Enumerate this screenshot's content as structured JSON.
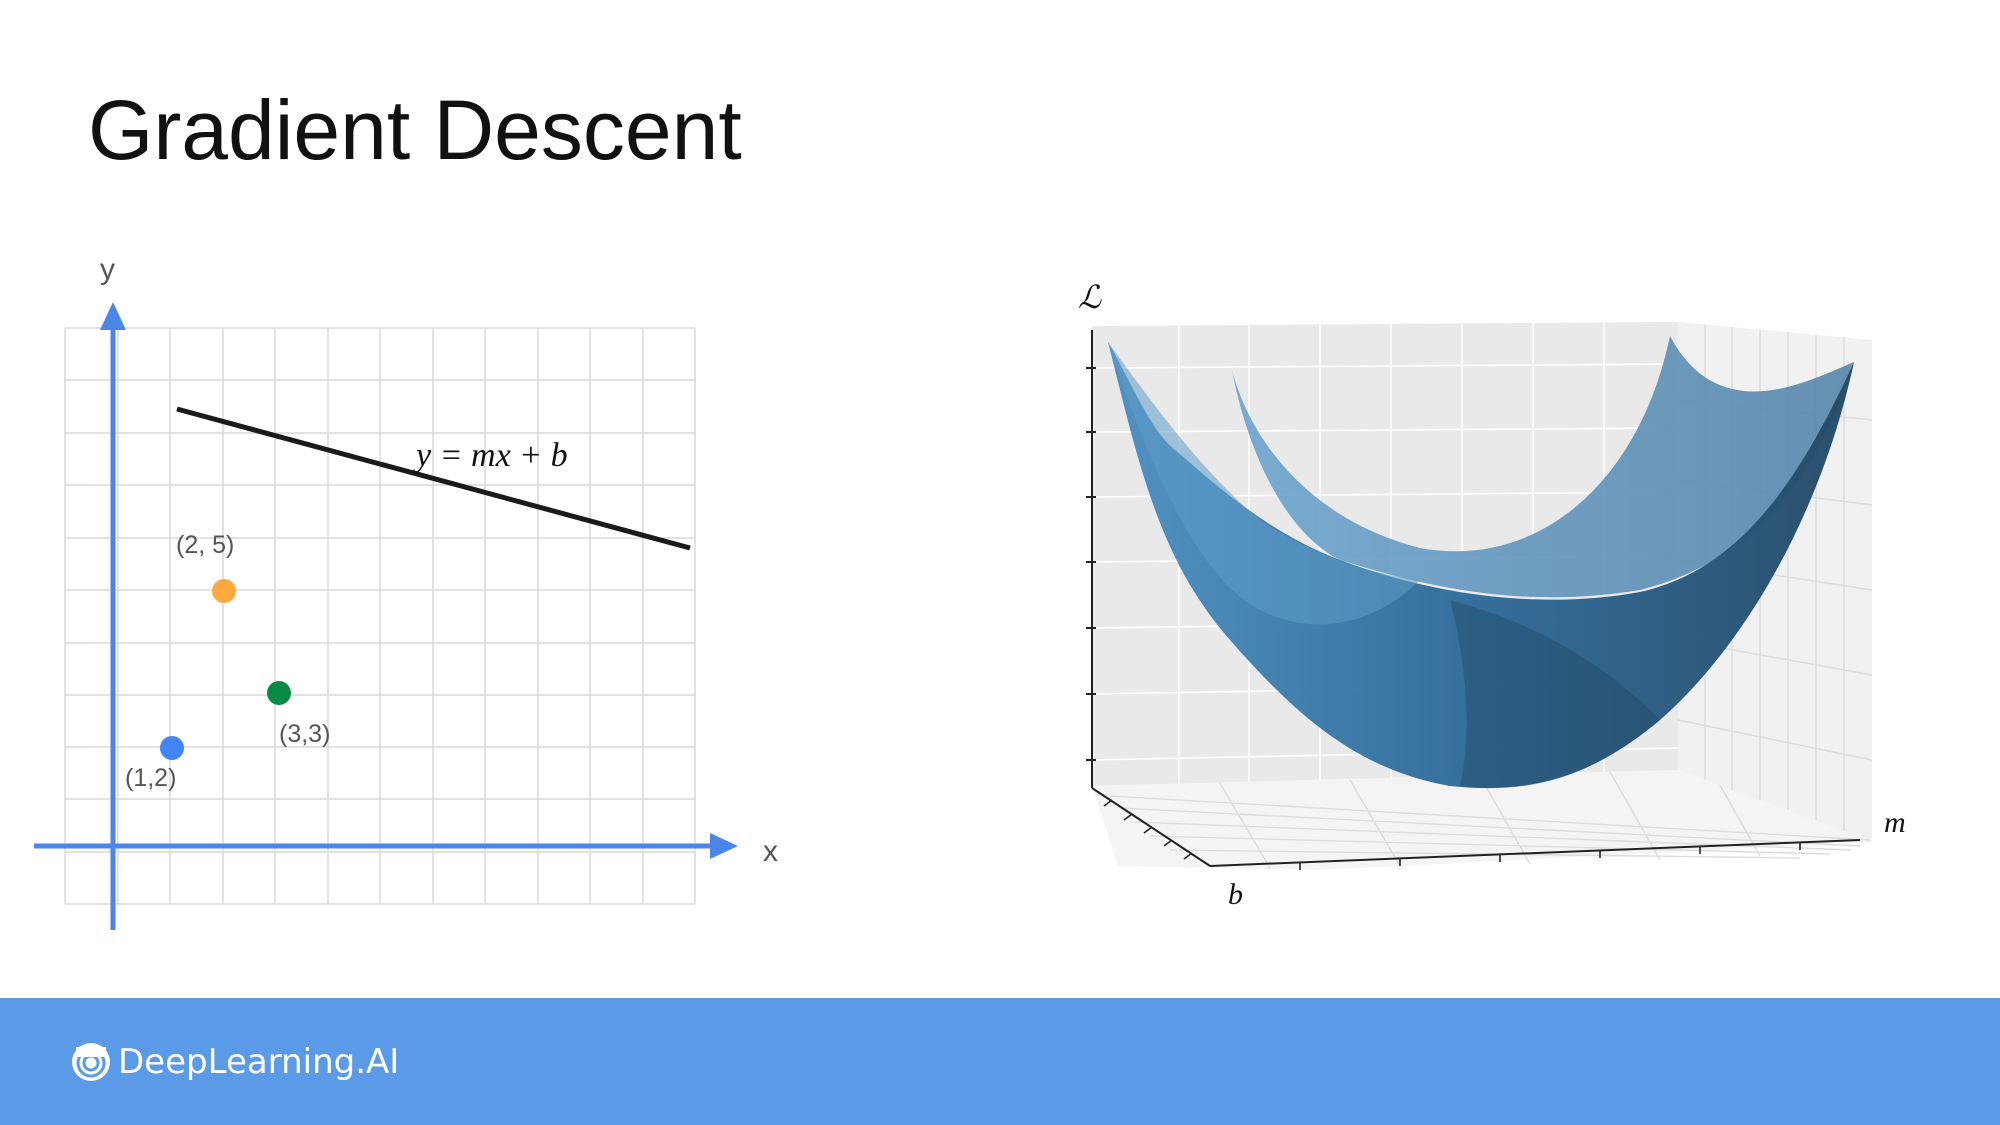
{
  "slide": {
    "title": "Gradient Descent"
  },
  "plot": {
    "x_axis_label": "x",
    "y_axis_label": "y",
    "equation": "y = mx + b",
    "points": [
      {
        "label": "(1,2)",
        "x": 1,
        "y": 2,
        "color": "#4285f4"
      },
      {
        "label": "(2, 5)",
        "x": 2,
        "y": 5,
        "color": "#fbab3e"
      },
      {
        "label": "(3,3)",
        "x": 3,
        "y": 3,
        "color": "#0b8a43"
      }
    ],
    "axis_color": "#4a86e8",
    "line_color": "#1a1a1a"
  },
  "surface": {
    "vertical_label": "ℒ",
    "depth_label": "b",
    "width_label": "m",
    "surface_color": "#2f6f9e"
  },
  "footer": {
    "brand": "DeepLearning.AI",
    "background_color": "#5b9ae6"
  }
}
